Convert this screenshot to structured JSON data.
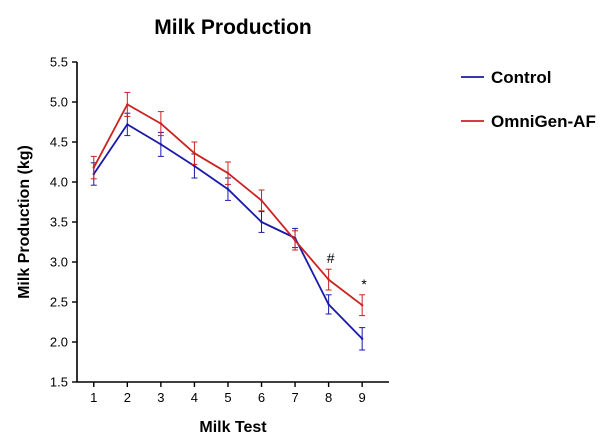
{
  "chart_data": {
    "type": "line",
    "title": "Milk Production",
    "xlabel": "Milk Test",
    "ylabel": "Milk Production (kg)",
    "x": [
      1,
      2,
      3,
      4,
      5,
      6,
      7,
      8,
      9
    ],
    "ylim": [
      1.5,
      5.5
    ],
    "yticks": [
      "1.5",
      "2.0",
      "2.5",
      "3.0",
      "3.5",
      "4.0",
      "4.5",
      "5.0",
      "5.5"
    ],
    "legend_position": "right",
    "grid": false,
    "series": [
      {
        "name": "Control",
        "color": "#1a1aaa",
        "values": [
          4.1,
          4.72,
          4.47,
          4.2,
          3.91,
          3.5,
          3.3,
          2.47,
          2.04
        ],
        "errors": [
          0.14,
          0.14,
          0.15,
          0.15,
          0.14,
          0.13,
          0.12,
          0.12,
          0.14
        ]
      },
      {
        "name": "OmniGen-AF",
        "color": "#cc2222",
        "values": [
          4.18,
          4.97,
          4.73,
          4.36,
          4.11,
          3.77,
          3.27,
          2.78,
          2.46
        ],
        "errors": [
          0.14,
          0.15,
          0.15,
          0.14,
          0.14,
          0.13,
          0.12,
          0.13,
          0.13
        ]
      }
    ],
    "annotations": [
      {
        "x": 8,
        "text": "#"
      },
      {
        "x": 9,
        "text": "*"
      }
    ]
  }
}
